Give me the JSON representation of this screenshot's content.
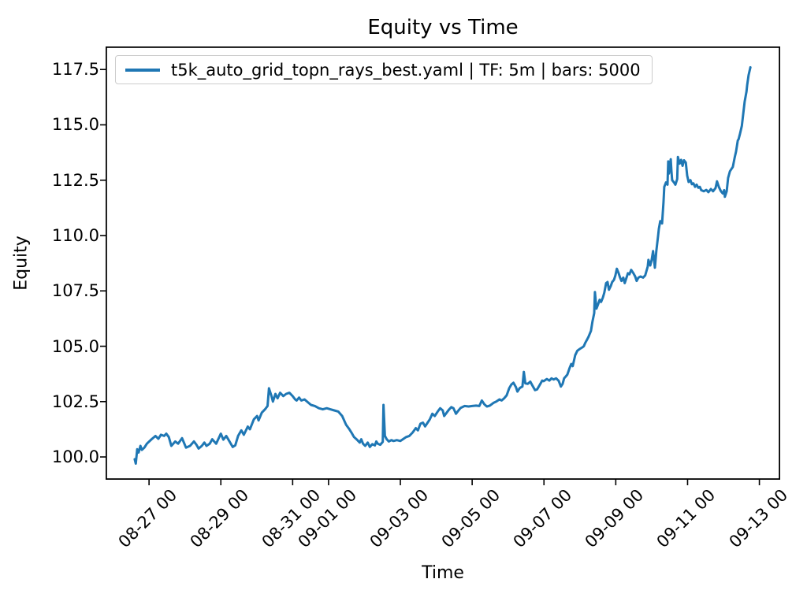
{
  "figure": {
    "title": "Equity vs Time",
    "xlabel": "Time",
    "ylabel": "Equity",
    "background": "#ffffff"
  },
  "legend": {
    "label": "t5k_auto_grid_topn_rays_best.yaml | TF: 5m | bars: 5000",
    "line_color": "#1f77b4",
    "position": "upper left"
  },
  "chart_data": {
    "type": "line",
    "title": "Equity vs Time",
    "xlabel": "Time",
    "ylabel": "Equity",
    "grid": false,
    "line_color": "#1f77b4",
    "x_axis": {
      "tick_labels": [
        "08-27 00",
        "08-29 00",
        "08-31 00",
        "09-01 00",
        "09-03 00",
        "09-05 00",
        "09-07 00",
        "09-09 00",
        "09-11 00",
        "09-13 00"
      ],
      "tick_positions_days": [
        0,
        2,
        4,
        5,
        7,
        9,
        11,
        13,
        15,
        17
      ],
      "xlim_days": [
        -1.21,
        17.58
      ]
    },
    "y_axis": {
      "tick_labels": [
        "100.0",
        "102.5",
        "105.0",
        "107.5",
        "110.0",
        "112.5",
        "115.0",
        "117.5"
      ],
      "tick_values": [
        100.0,
        102.5,
        105.0,
        107.5,
        110.0,
        112.5,
        115.0,
        117.5
      ],
      "ylim": [
        98.97,
        118.54
      ]
    },
    "series": [
      {
        "name": "t5k_auto_grid_topn_rays_best.yaml | TF: 5m | bars: 5000",
        "color": "#1f77b4",
        "x_unit": "days since 08-27 00",
        "points": [
          [
            -0.4,
            99.9
          ],
          [
            -0.37,
            99.7
          ],
          [
            -0.33,
            100.35
          ],
          [
            -0.29,
            100.2
          ],
          [
            -0.24,
            100.5
          ],
          [
            -0.2,
            100.32
          ],
          [
            -0.13,
            100.42
          ],
          [
            -0.06,
            100.6
          ],
          [
            0.07,
            100.8
          ],
          [
            0.18,
            100.95
          ],
          [
            0.26,
            100.82
          ],
          [
            0.33,
            101.0
          ],
          [
            0.42,
            100.95
          ],
          [
            0.48,
            101.05
          ],
          [
            0.55,
            100.9
          ],
          [
            0.62,
            100.5
          ],
          [
            0.73,
            100.7
          ],
          [
            0.81,
            100.6
          ],
          [
            0.92,
            100.85
          ],
          [
            1.03,
            100.42
          ],
          [
            1.14,
            100.5
          ],
          [
            1.25,
            100.7
          ],
          [
            1.32,
            100.55
          ],
          [
            1.38,
            100.38
          ],
          [
            1.47,
            100.5
          ],
          [
            1.54,
            100.65
          ],
          [
            1.6,
            100.5
          ],
          [
            1.69,
            100.6
          ],
          [
            1.76,
            100.8
          ],
          [
            1.87,
            100.6
          ],
          [
            2.0,
            101.05
          ],
          [
            2.07,
            100.78
          ],
          [
            2.15,
            100.95
          ],
          [
            2.24,
            100.7
          ],
          [
            2.33,
            100.45
          ],
          [
            2.4,
            100.52
          ],
          [
            2.48,
            100.95
          ],
          [
            2.57,
            101.2
          ],
          [
            2.64,
            101.0
          ],
          [
            2.75,
            101.37
          ],
          [
            2.81,
            101.25
          ],
          [
            2.92,
            101.7
          ],
          [
            3.01,
            101.85
          ],
          [
            3.05,
            101.65
          ],
          [
            3.14,
            102.0
          ],
          [
            3.23,
            102.15
          ],
          [
            3.3,
            102.3
          ],
          [
            3.34,
            103.1
          ],
          [
            3.41,
            102.75
          ],
          [
            3.45,
            102.5
          ],
          [
            3.52,
            102.85
          ],
          [
            3.58,
            102.65
          ],
          [
            3.65,
            102.9
          ],
          [
            3.74,
            102.75
          ],
          [
            3.82,
            102.85
          ],
          [
            3.91,
            102.9
          ],
          [
            4.0,
            102.75
          ],
          [
            4.07,
            102.6
          ],
          [
            4.11,
            102.55
          ],
          [
            4.18,
            102.68
          ],
          [
            4.24,
            102.55
          ],
          [
            4.33,
            102.6
          ],
          [
            4.4,
            102.5
          ],
          [
            4.51,
            102.35
          ],
          [
            4.62,
            102.3
          ],
          [
            4.73,
            102.2
          ],
          [
            4.84,
            102.15
          ],
          [
            4.95,
            102.2
          ],
          [
            5.05,
            102.15
          ],
          [
            5.16,
            102.1
          ],
          [
            5.27,
            102.05
          ],
          [
            5.38,
            101.85
          ],
          [
            5.49,
            101.45
          ],
          [
            5.58,
            101.25
          ],
          [
            5.65,
            101.07
          ],
          [
            5.71,
            100.9
          ],
          [
            5.78,
            100.8
          ],
          [
            5.87,
            100.65
          ],
          [
            5.91,
            100.8
          ],
          [
            5.96,
            100.6
          ],
          [
            6.02,
            100.5
          ],
          [
            6.09,
            100.65
          ],
          [
            6.15,
            100.45
          ],
          [
            6.22,
            100.58
          ],
          [
            6.29,
            100.52
          ],
          [
            6.33,
            100.7
          ],
          [
            6.37,
            100.6
          ],
          [
            6.44,
            100.55
          ],
          [
            6.51,
            100.68
          ],
          [
            6.53,
            102.35
          ],
          [
            6.57,
            100.95
          ],
          [
            6.62,
            100.8
          ],
          [
            6.68,
            100.7
          ],
          [
            6.75,
            100.76
          ],
          [
            6.81,
            100.72
          ],
          [
            6.9,
            100.76
          ],
          [
            7.0,
            100.72
          ],
          [
            7.09,
            100.82
          ],
          [
            7.16,
            100.9
          ],
          [
            7.25,
            100.95
          ],
          [
            7.34,
            101.1
          ],
          [
            7.43,
            101.3
          ],
          [
            7.49,
            101.2
          ],
          [
            7.56,
            101.5
          ],
          [
            7.63,
            101.55
          ],
          [
            7.69,
            101.38
          ],
          [
            7.76,
            101.55
          ],
          [
            7.82,
            101.7
          ],
          [
            7.89,
            101.95
          ],
          [
            7.96,
            101.85
          ],
          [
            8.04,
            102.05
          ],
          [
            8.11,
            102.2
          ],
          [
            8.18,
            102.1
          ],
          [
            8.22,
            101.85
          ],
          [
            8.29,
            102.0
          ],
          [
            8.35,
            102.13
          ],
          [
            8.42,
            102.25
          ],
          [
            8.48,
            102.2
          ],
          [
            8.55,
            101.95
          ],
          [
            8.62,
            102.1
          ],
          [
            8.68,
            102.22
          ],
          [
            8.79,
            102.3
          ],
          [
            8.9,
            102.28
          ],
          [
            9.0,
            102.3
          ],
          [
            9.11,
            102.32
          ],
          [
            9.2,
            102.3
          ],
          [
            9.27,
            102.55
          ],
          [
            9.34,
            102.38
          ],
          [
            9.41,
            102.28
          ],
          [
            9.49,
            102.32
          ],
          [
            9.6,
            102.45
          ],
          [
            9.67,
            102.5
          ],
          [
            9.76,
            102.6
          ],
          [
            9.82,
            102.55
          ],
          [
            9.89,
            102.65
          ],
          [
            9.96,
            102.78
          ],
          [
            10.03,
            103.1
          ],
          [
            10.09,
            103.27
          ],
          [
            10.15,
            103.35
          ],
          [
            10.22,
            103.15
          ],
          [
            10.26,
            102.95
          ],
          [
            10.33,
            103.12
          ],
          [
            10.4,
            103.18
          ],
          [
            10.44,
            103.84
          ],
          [
            10.48,
            103.32
          ],
          [
            10.55,
            103.3
          ],
          [
            10.62,
            103.4
          ],
          [
            10.68,
            103.22
          ],
          [
            10.75,
            103.02
          ],
          [
            10.81,
            103.05
          ],
          [
            10.88,
            103.25
          ],
          [
            10.95,
            103.45
          ],
          [
            10.99,
            103.42
          ],
          [
            11.08,
            103.52
          ],
          [
            11.15,
            103.45
          ],
          [
            11.21,
            103.55
          ],
          [
            11.27,
            103.5
          ],
          [
            11.34,
            103.55
          ],
          [
            11.41,
            103.44
          ],
          [
            11.47,
            103.18
          ],
          [
            11.52,
            103.3
          ],
          [
            11.56,
            103.55
          ],
          [
            11.6,
            103.62
          ],
          [
            11.65,
            103.72
          ],
          [
            11.71,
            104.0
          ],
          [
            11.76,
            104.2
          ],
          [
            11.8,
            104.1
          ],
          [
            11.87,
            104.6
          ],
          [
            11.93,
            104.8
          ],
          [
            12.0,
            104.88
          ],
          [
            12.07,
            104.95
          ],
          [
            12.11,
            105.0
          ],
          [
            12.15,
            105.15
          ],
          [
            12.2,
            105.3
          ],
          [
            12.24,
            105.42
          ],
          [
            12.31,
            105.7
          ],
          [
            12.35,
            106.1
          ],
          [
            12.4,
            106.5
          ],
          [
            12.42,
            107.45
          ],
          [
            12.46,
            106.7
          ],
          [
            12.51,
            106.9
          ],
          [
            12.55,
            107.1
          ],
          [
            12.59,
            107.0
          ],
          [
            12.64,
            107.2
          ],
          [
            12.68,
            107.42
          ],
          [
            12.73,
            107.85
          ],
          [
            12.77,
            107.9
          ],
          [
            12.81,
            107.55
          ],
          [
            12.86,
            107.72
          ],
          [
            12.9,
            107.9
          ],
          [
            12.95,
            108.0
          ],
          [
            12.99,
            108.2
          ],
          [
            13.03,
            108.5
          ],
          [
            13.08,
            108.3
          ],
          [
            13.12,
            108.1
          ],
          [
            13.16,
            107.95
          ],
          [
            13.21,
            108.1
          ],
          [
            13.25,
            107.85
          ],
          [
            13.3,
            108.1
          ],
          [
            13.34,
            108.3
          ],
          [
            13.38,
            108.25
          ],
          [
            13.43,
            108.45
          ],
          [
            13.49,
            108.3
          ],
          [
            13.54,
            108.15
          ],
          [
            13.58,
            107.95
          ],
          [
            13.63,
            108.1
          ],
          [
            13.69,
            108.15
          ],
          [
            13.76,
            108.1
          ],
          [
            13.82,
            108.2
          ],
          [
            13.89,
            108.6
          ],
          [
            13.91,
            108.9
          ],
          [
            13.96,
            108.65
          ],
          [
            14.0,
            108.9
          ],
          [
            14.02,
            109.1
          ],
          [
            14.04,
            109.3
          ],
          [
            14.09,
            108.55
          ],
          [
            14.13,
            109.3
          ],
          [
            14.18,
            110.0
          ],
          [
            14.2,
            110.3
          ],
          [
            14.24,
            110.65
          ],
          [
            14.29,
            110.55
          ],
          [
            14.33,
            111.5
          ],
          [
            14.35,
            112.2
          ],
          [
            14.4,
            112.4
          ],
          [
            14.44,
            112.3
          ],
          [
            14.46,
            113.35
          ],
          [
            14.48,
            112.8
          ],
          [
            14.53,
            113.45
          ],
          [
            14.55,
            112.9
          ],
          [
            14.57,
            112.5
          ],
          [
            14.62,
            112.4
          ],
          [
            14.66,
            112.3
          ],
          [
            14.71,
            112.55
          ],
          [
            14.73,
            113.55
          ],
          [
            14.78,
            113.25
          ],
          [
            14.82,
            113.42
          ],
          [
            14.86,
            113.15
          ],
          [
            14.9,
            113.4
          ],
          [
            14.95,
            113.3
          ],
          [
            14.99,
            112.7
          ],
          [
            15.03,
            112.42
          ],
          [
            15.08,
            112.5
          ],
          [
            15.12,
            112.32
          ],
          [
            15.16,
            112.36
          ],
          [
            15.21,
            112.2
          ],
          [
            15.25,
            112.3
          ],
          [
            15.3,
            112.16
          ],
          [
            15.34,
            112.2
          ],
          [
            15.38,
            112.05
          ],
          [
            15.45,
            112.0
          ],
          [
            15.52,
            112.06
          ],
          [
            15.58,
            111.96
          ],
          [
            15.65,
            112.1
          ],
          [
            15.71,
            112.0
          ],
          [
            15.78,
            112.15
          ],
          [
            15.82,
            112.45
          ],
          [
            15.87,
            112.2
          ],
          [
            15.93,
            112.0
          ],
          [
            15.98,
            111.9
          ],
          [
            16.02,
            112.05
          ],
          [
            16.04,
            111.75
          ],
          [
            16.09,
            112.0
          ],
          [
            16.13,
            112.6
          ],
          [
            16.18,
            112.9
          ],
          [
            16.22,
            113.0
          ],
          [
            16.26,
            113.1
          ],
          [
            16.31,
            113.5
          ],
          [
            16.35,
            113.8
          ],
          [
            16.4,
            114.3
          ],
          [
            16.42,
            114.35
          ],
          [
            16.46,
            114.6
          ],
          [
            16.51,
            114.95
          ],
          [
            16.55,
            115.5
          ],
          [
            16.59,
            116.05
          ],
          [
            16.64,
            116.5
          ],
          [
            16.66,
            116.8
          ],
          [
            16.7,
            117.25
          ],
          [
            16.75,
            117.6
          ]
        ]
      }
    ]
  }
}
